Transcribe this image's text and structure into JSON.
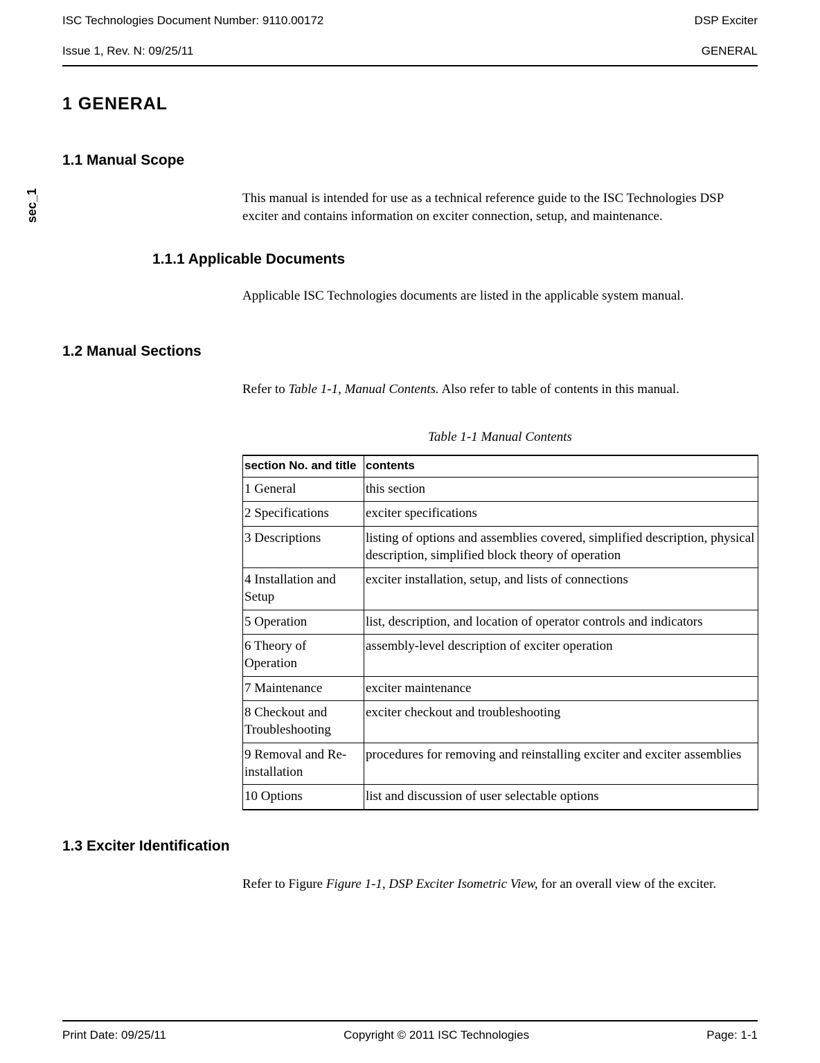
{
  "header": {
    "doc_number": "ISC Technologies Document Number: 9110.00172",
    "product": "DSP Exciter",
    "issue": "Issue 1, Rev. N: 09/25/11",
    "section_name": "GENERAL"
  },
  "side_tag": "sec_1",
  "sections": {
    "h1": "1 GENERAL",
    "s11": {
      "title": "1.1 Manual Scope",
      "body": "This manual is intended for use as a technical reference guide to the ISC Technologies DSP exciter and contains information on exciter connection, setup, and maintenance."
    },
    "s111": {
      "title": "1.1.1 Applicable Documents",
      "body": "Applicable ISC Technologies documents are listed in the applicable system manual."
    },
    "s12": {
      "title": "1.2 Manual Sections",
      "body_pre": "Refer to ",
      "body_ref": "Table 1-1, Manual Contents.",
      "body_post": " Also refer to table of contents in this manual."
    },
    "s13": {
      "title": "1.3     Exciter Identification",
      "body_pre": "Refer to Figure ",
      "body_ref": "Figure 1-1, DSP Exciter Isometric View,",
      "body_post": " for an overall view of the exciter."
    }
  },
  "table": {
    "caption": "Table 1-1 Manual Contents",
    "col1": "section No. and title",
    "col2": "contents",
    "rows": [
      {
        "a": "1 General",
        "b": "this section"
      },
      {
        "a": "2 Specifications",
        "b": "exciter specifications"
      },
      {
        "a": "3 Descriptions",
        "b": "listing of options and assemblies covered, simplified description, physical description, simplified block theory of operation"
      },
      {
        "a": "4 Installation and Setup",
        "b": "exciter installation, setup, and lists of connections"
      },
      {
        "a": "5 Operation",
        "b": "list, description, and location of operator controls and indicators"
      },
      {
        "a": "6 Theory of Operation",
        "b": "assembly-level description of exciter operation"
      },
      {
        "a": "7 Maintenance",
        "b": "exciter maintenance"
      },
      {
        "a": "8 Checkout and Troubleshooting",
        "b": "exciter checkout and troubleshooting"
      },
      {
        "a": "9 Removal and Re-installation",
        "b": "procedures for removing and reinstalling exciter and exciter assemblies"
      },
      {
        "a": "10 Options",
        "b": "list and discussion of user selectable options"
      }
    ]
  },
  "footer": {
    "print_date": "Print Date: 09/25/11",
    "copyright": "Copyright © 2011 ISC Technologies",
    "page": "Page: 1-1"
  }
}
